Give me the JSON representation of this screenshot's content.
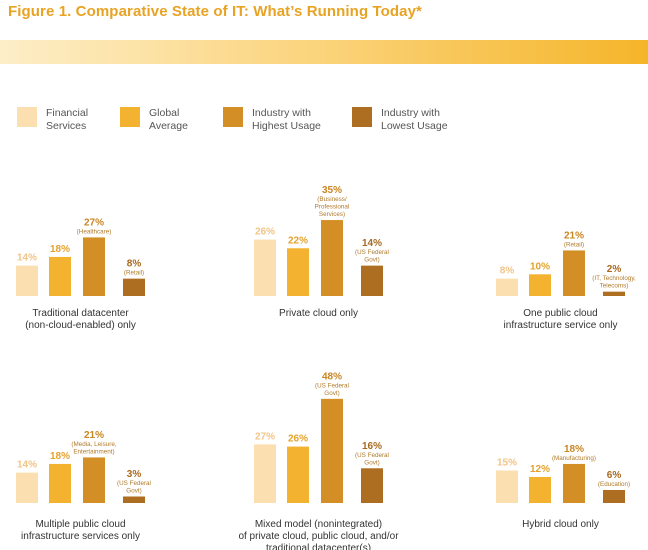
{
  "title": "Figure 1. Comparative State of IT: What’s Running Today*",
  "legend": [
    {
      "line1": "Financial",
      "line2": "Services",
      "color": "#fbdfb0"
    },
    {
      "line1": "Global",
      "line2": "Average",
      "color": "#f3b22f"
    },
    {
      "line1": "Industry with",
      "line2": "Highest Usage",
      "color": "#d38f26"
    },
    {
      "line1": "Industry with",
      "line2": "Lowest Usage",
      "color": "#ad6e22"
    }
  ],
  "chart_data": {
    "type": "bar",
    "series": [
      "Financial Services",
      "Global Average",
      "Industry with Highest Usage",
      "Industry with Lowest Usage"
    ],
    "groups": [
      {
        "label": [
          "Traditional datacenter",
          "(non-cloud-enabled) only"
        ],
        "values": [
          14,
          18,
          27,
          8
        ],
        "display": [
          "14%",
          "18%",
          "27%",
          "8%"
        ],
        "notes": [
          [],
          [],
          [
            "(Healthcare)"
          ],
          [
            "(Retail)"
          ]
        ]
      },
      {
        "label": [
          "Private cloud only"
        ],
        "values": [
          26,
          22,
          35,
          14
        ],
        "display": [
          "26%",
          "22%",
          "35%",
          "14%"
        ],
        "notes": [
          [],
          [],
          [
            "(Business/",
            "Professional",
            "Services)"
          ],
          [
            "(US Federal",
            "Govt)"
          ]
        ]
      },
      {
        "label": [
          "One public cloud",
          "infrastructure service only"
        ],
        "values": [
          8,
          10,
          21,
          2
        ],
        "display": [
          "8%",
          "10%",
          "21%",
          "2%"
        ],
        "notes": [
          [],
          [],
          [
            "(Retail)"
          ],
          [
            "(IT, Technology,",
            "Telecoms)"
          ]
        ]
      },
      {
        "label": [
          "Multiple public cloud",
          "infrastructure services only"
        ],
        "values": [
          14,
          18,
          21,
          3
        ],
        "display": [
          "14%",
          "18%",
          "21%",
          "3%"
        ],
        "notes": [
          [],
          [],
          [
            "(Media, Leisure,",
            "Entertainment)"
          ],
          [
            "(US Federal",
            "Govt)"
          ]
        ]
      },
      {
        "label": [
          "Mixed model (nonintegrated)",
          "of private cloud, public cloud, and/or",
          "traditional datacenter(s)"
        ],
        "values": [
          27,
          26,
          48,
          16
        ],
        "display": [
          "27%",
          "26%",
          "48%",
          "16%"
        ],
        "notes": [
          [],
          [],
          [
            "(US Federal",
            "Govt)"
          ],
          [
            "(US Federal",
            "Govt)"
          ]
        ]
      },
      {
        "label": [
          "Hybrid cloud only"
        ],
        "values": [
          15,
          12,
          18,
          6
        ],
        "display": [
          "15%",
          "12%",
          "18%",
          "6%"
        ],
        "notes": [
          [],
          [],
          [
            "(Manufacturing)"
          ],
          [
            "(Education)"
          ]
        ]
      }
    ],
    "colors": [
      "#fbdfb0",
      "#f3b22f",
      "#d38f26",
      "#ad6e22"
    ],
    "value_colors": [
      "#f1c487",
      "#e5a12a",
      "#c98522",
      "#a8691f"
    ]
  }
}
